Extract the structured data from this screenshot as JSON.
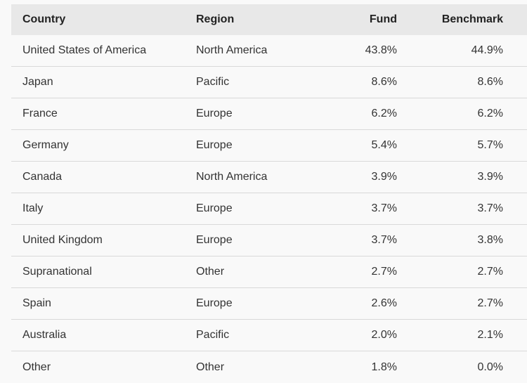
{
  "table": {
    "headers": {
      "country": "Country",
      "region": "Region",
      "fund": "Fund",
      "benchmark": "Benchmark"
    },
    "rows": [
      {
        "country": "United States of America",
        "region": "North America",
        "fund": "43.8%",
        "benchmark": "44.9%"
      },
      {
        "country": "Japan",
        "region": "Pacific",
        "fund": "8.6%",
        "benchmark": "8.6%"
      },
      {
        "country": "France",
        "region": "Europe",
        "fund": "6.2%",
        "benchmark": "6.2%"
      },
      {
        "country": "Germany",
        "region": "Europe",
        "fund": "5.4%",
        "benchmark": "5.7%"
      },
      {
        "country": "Canada",
        "region": "North America",
        "fund": "3.9%",
        "benchmark": "3.9%"
      },
      {
        "country": "Italy",
        "region": "Europe",
        "fund": "3.7%",
        "benchmark": "3.7%"
      },
      {
        "country": "United Kingdom",
        "region": "Europe",
        "fund": "3.7%",
        "benchmark": "3.8%"
      },
      {
        "country": "Supranational",
        "region": "Other",
        "fund": "2.7%",
        "benchmark": "2.7%"
      },
      {
        "country": "Spain",
        "region": "Europe",
        "fund": "2.6%",
        "benchmark": "2.7%"
      },
      {
        "country": "Australia",
        "region": "Pacific",
        "fund": "2.0%",
        "benchmark": "2.1%"
      },
      {
        "country": "Other",
        "region": "Other",
        "fund": "1.8%",
        "benchmark": "0.0%"
      }
    ]
  },
  "colors": {
    "background": "#f9f9f9",
    "header_background": "#e8e8e8",
    "row_divider": "#d9d9d9",
    "text": "#333333"
  }
}
